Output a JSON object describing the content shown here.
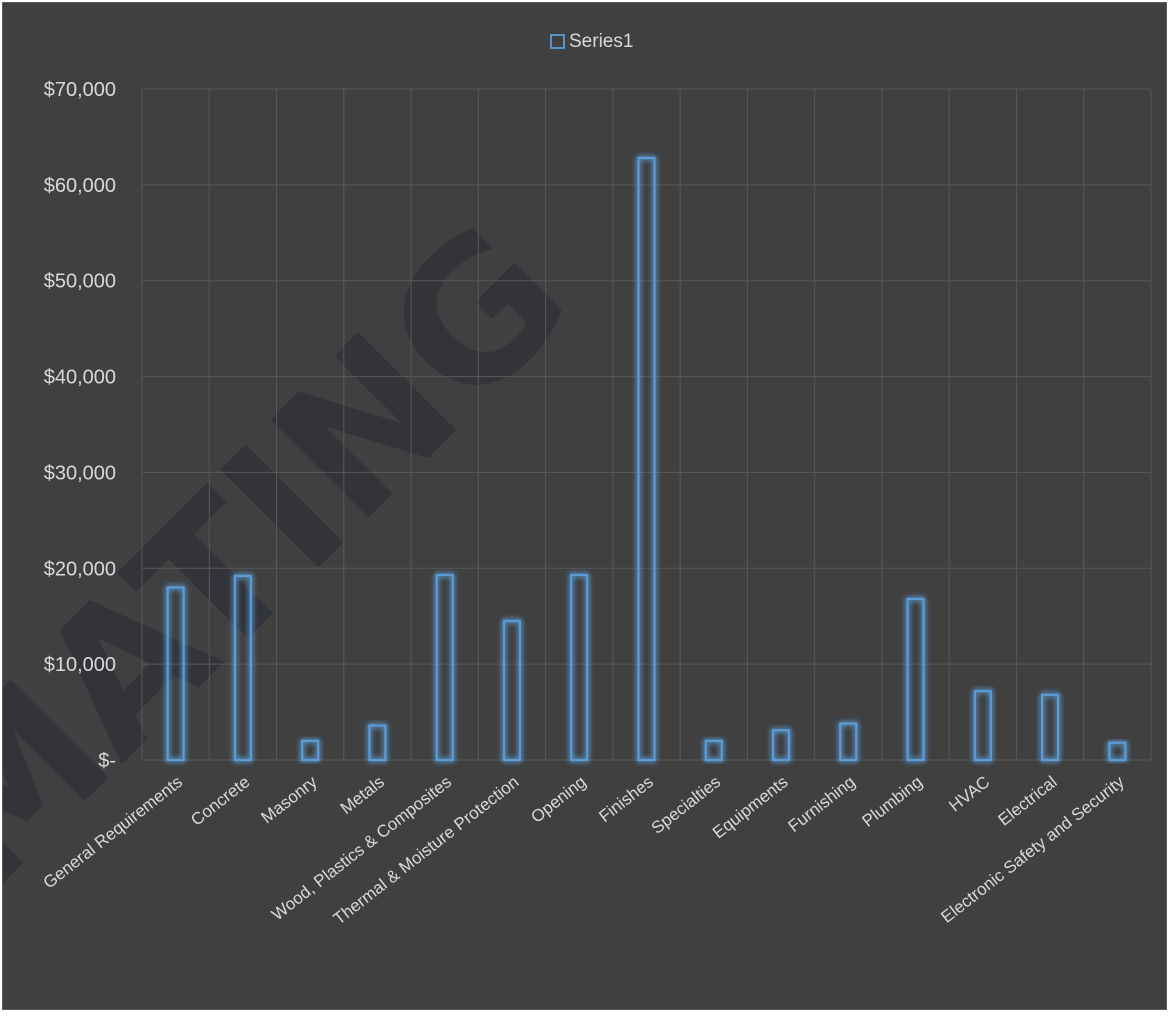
{
  "watermark": "MATING",
  "chart_data": {
    "type": "bar",
    "title": "",
    "xlabel": "",
    "ylabel": "",
    "legend": {
      "position": "top",
      "entries": [
        "Series1"
      ]
    },
    "grid": true,
    "ylim": [
      0,
      70000
    ],
    "yticks": [
      0,
      10000,
      20000,
      30000,
      40000,
      50000,
      60000,
      70000
    ],
    "ytick_labels": [
      "$-",
      "$10,000",
      "$20,000",
      "$30,000",
      "$40,000",
      "$50,000",
      "$60,000",
      "$70,000"
    ],
    "categories": [
      "General Requirements",
      "Concrete",
      "Masonry",
      "Metals",
      "Wood, Plastics & Composites",
      "Thermal & Moisture Protection",
      "Opening",
      "Finishes",
      "Specialties",
      "Equipments",
      "Furnishing",
      "Plumbing",
      "HVAC",
      "Electrical",
      "Electronic Safety and Security"
    ],
    "series": [
      {
        "name": "Series1",
        "color": "#5b9bd5",
        "values": [
          18000,
          19200,
          2000,
          3600,
          19300,
          14500,
          19300,
          62800,
          2000,
          3100,
          3800,
          16800,
          7200,
          6800,
          1800
        ]
      }
    ]
  },
  "colors": {
    "background": "#404040",
    "grid": "#595959",
    "text": "#d9d9d9",
    "bar_outline": "#5b9bd5"
  }
}
